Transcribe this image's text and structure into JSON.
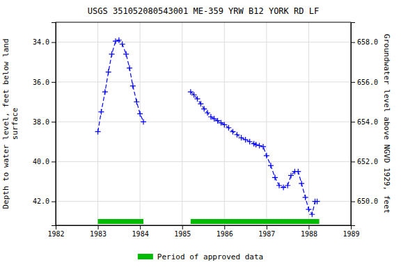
{
  "chart_data": {
    "type": "line",
    "title": "USGS 351052080543001 ME-359 YRW B12 YORK RD LF",
    "ylabel": "Depth to water level, feet below land\n surface",
    "y2label": "Groundwater level above NGVD 1929, feet",
    "xlim": [
      1982,
      1989
    ],
    "xticks": [
      1982,
      1983,
      1984,
      1985,
      1986,
      1987,
      1988,
      1989
    ],
    "ylim": [
      43.2,
      33.0
    ],
    "yticks": [
      {
        "value": 34.0,
        "label": "34.0"
      },
      {
        "value": 36.0,
        "label": "36.0"
      },
      {
        "value": 38.0,
        "label": "38.0"
      },
      {
        "value": 40.0,
        "label": "40.0"
      },
      {
        "value": 42.0,
        "label": "42.0"
      }
    ],
    "y2lim": [
      648.8,
      659.0
    ],
    "y2ticks": [
      {
        "value": 650.0,
        "label": "650.0"
      },
      {
        "value": 652.0,
        "label": "652.0"
      },
      {
        "value": 654.0,
        "label": "654.0"
      },
      {
        "value": 656.0,
        "label": "656.0"
      },
      {
        "value": 658.0,
        "label": "658.0"
      }
    ],
    "grid": true,
    "legend": "bottom",
    "series": [
      {
        "type": "line",
        "color": "#0000ff",
        "marker": "plus",
        "line_style": "dashed",
        "x": [
          1983.0,
          1983.08,
          1983.17,
          1983.25,
          1983.33,
          1983.42,
          1983.5,
          1983.58,
          1983.67,
          1983.75,
          1983.83,
          1983.92,
          1984.0,
          1984.08
        ],
        "values": [
          38.5,
          37.5,
          36.5,
          35.5,
          34.6,
          33.95,
          33.9,
          34.1,
          34.6,
          35.3,
          36.2,
          37.0,
          37.6,
          38.0
        ]
      },
      {
        "type": "line",
        "color": "#0000ff",
        "marker": "plus",
        "line_style": "dashed",
        "x": [
          1985.2,
          1985.28,
          1985.36,
          1985.44,
          1985.52,
          1985.6,
          1985.68,
          1985.76,
          1985.84,
          1985.92,
          1986.0,
          1986.1,
          1986.2,
          1986.3,
          1986.4,
          1986.5,
          1986.6,
          1986.7,
          1986.75,
          1986.83,
          1986.92,
          1987.0,
          1987.1,
          1987.2,
          1987.3,
          1987.4,
          1987.5,
          1987.58,
          1987.67,
          1987.75,
          1987.83,
          1987.92,
          1988.0,
          1988.08,
          1988.15,
          1988.2
        ],
        "values": [
          36.5,
          36.65,
          36.85,
          37.1,
          37.35,
          37.55,
          37.75,
          37.85,
          37.95,
          38.05,
          38.15,
          38.3,
          38.5,
          38.65,
          38.8,
          38.9,
          39.0,
          39.1,
          39.15,
          39.2,
          39.25,
          39.7,
          40.2,
          40.8,
          41.2,
          41.3,
          41.2,
          40.7,
          40.5,
          40.5,
          41.1,
          41.8,
          42.4,
          42.65,
          42.0,
          42.0
        ]
      },
      {
        "type": "span",
        "name": "Period of approved data",
        "color": "#00bb00",
        "ranges": [
          [
            1983.0,
            1984.08
          ],
          [
            1985.2,
            1988.25
          ]
        ]
      }
    ]
  }
}
